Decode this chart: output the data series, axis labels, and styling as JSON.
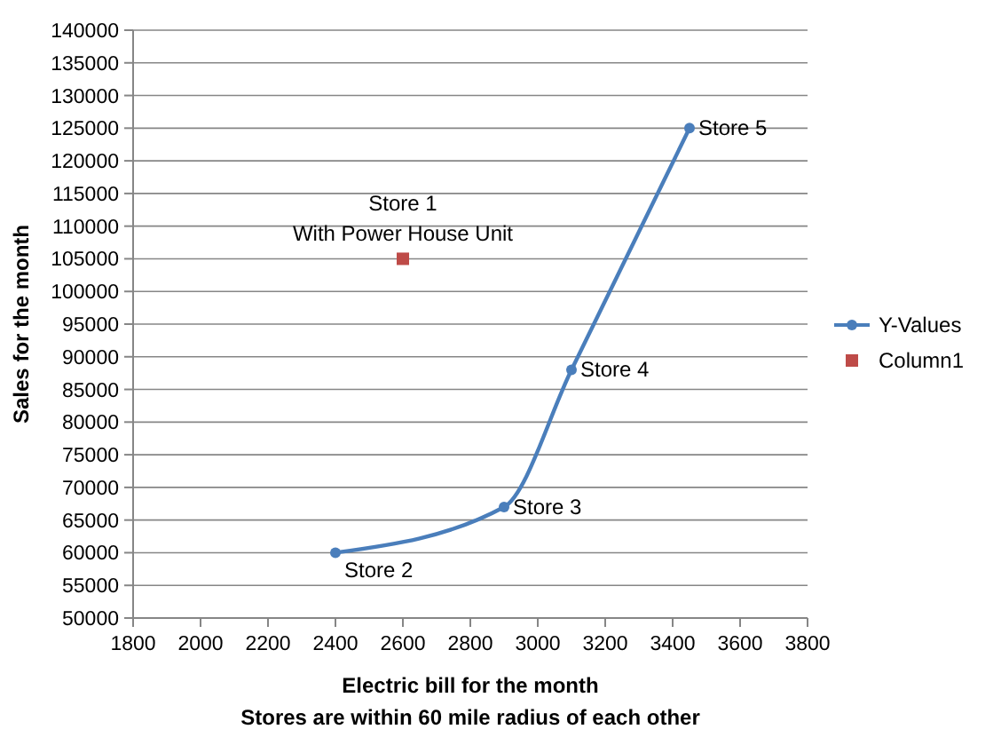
{
  "chart_data": {
    "type": "line",
    "xlabel": "Electric bill for the month",
    "ylabel": "Sales for the month",
    "xlim": [
      1800,
      3800
    ],
    "xticks": [
      1800,
      2000,
      2200,
      2400,
      2600,
      2800,
      3000,
      3200,
      3400,
      3600,
      3800
    ],
    "ylim": [
      50000,
      140000
    ],
    "yticks": [
      50000,
      55000,
      60000,
      65000,
      70000,
      75000,
      80000,
      85000,
      90000,
      95000,
      100000,
      105000,
      110000,
      115000,
      120000,
      125000,
      130000,
      135000,
      140000
    ],
    "grid": "y",
    "legend": "right",
    "series": [
      {
        "name": "Y-Values",
        "type": "line",
        "color": "#4a7ebb",
        "marker": "circle",
        "x": [
          2400,
          2900,
          3100,
          3450
        ],
        "values": [
          60000,
          67000,
          88000,
          125000
        ]
      },
      {
        "name": "Column1",
        "type": "scatter",
        "color": "#be4b48",
        "marker": "square",
        "x": [
          2600
        ],
        "values": [
          105000
        ]
      }
    ],
    "annotations": [
      {
        "text": "Store 2",
        "x": 2400,
        "y": 60000
      },
      {
        "text": "Store 3",
        "x": 2900,
        "y": 67000
      },
      {
        "text": "Store 4",
        "x": 3100,
        "y": 88000
      },
      {
        "text": "Store 5",
        "x": 3450,
        "y": 125000
      },
      {
        "text": "Store 1\nWith Power House Unit",
        "x": 2600,
        "y": 105000
      },
      "Stores are within 60 mile radius of each other"
    ]
  }
}
